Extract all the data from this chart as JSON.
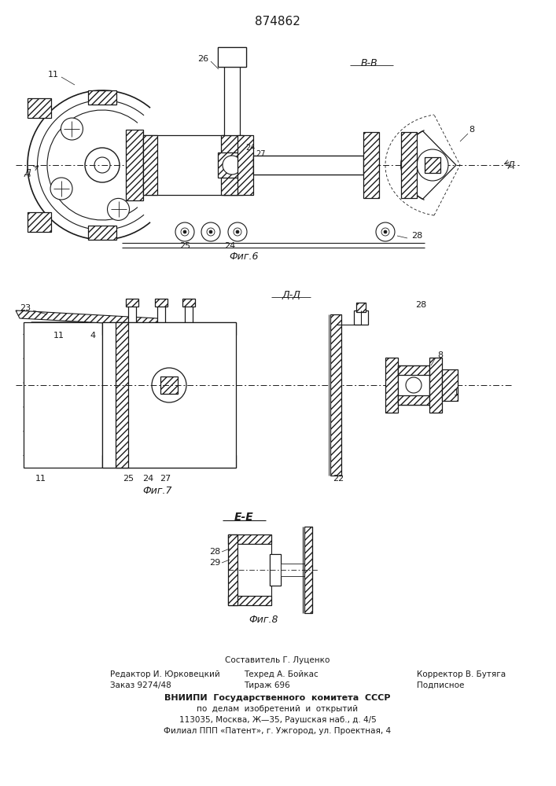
{
  "title": "874862",
  "fig6_label": "Фиг.6",
  "fig7_label": "Фиг.7",
  "fig8_label": "Фиг.8",
  "section_bb": "В-В",
  "section_dd": "Д-Д",
  "section_ee": "Е-Е",
  "footer_line1": "Составитель Г. Луценко",
  "footer_line2_left": "Редактор И. Юрковецкий",
  "footer_line2_center": "Техред А. Бойкас",
  "footer_line2_right": "Корректор В. Бутяга",
  "footer_line3_left": "Заказ 9274/48",
  "footer_line3_center": "Тираж 696",
  "footer_line3_right": "Подписное",
  "footer_line4": "ВНИИПИ  Государственного  комитета  СССР",
  "footer_line5": "по  делам  изобретений  и  открытий",
  "footer_line6": "113035, Москва, Ж—35, Раушская наб., д. 4/5",
  "footer_line7": "Филиал ППП «Патент», г. Ужгород, ул. Проектная, 4"
}
